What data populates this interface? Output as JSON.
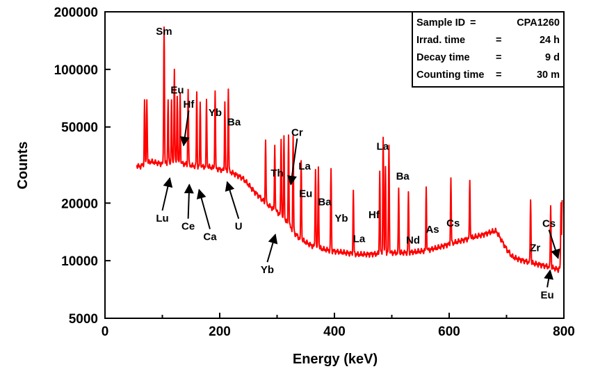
{
  "chart_data": {
    "type": "line",
    "title": "",
    "xlabel": "Energy (keV)",
    "ylabel": "Counts",
    "xlim": [
      0,
      800
    ],
    "ylim": [
      5000,
      200000
    ],
    "yscale": "log",
    "x_ticks": [
      "0",
      "200",
      "400",
      "600",
      "800"
    ],
    "y_ticks": [
      {
        "value": 5000,
        "label": "5000"
      },
      {
        "value": 10000,
        "label": "10000"
      },
      {
        "value": 20000,
        "label": "20000"
      },
      {
        "value": 50000,
        "label": "50000"
      },
      {
        "value": 100000,
        "label": "100000"
      },
      {
        "value": 200000,
        "label": "200000"
      }
    ],
    "line_color": "#ff0000",
    "grid": false,
    "info_box": {
      "placement": "top-right",
      "lines": [
        {
          "key": "Sample ID",
          "sep": "=",
          "value": "CPA1260"
        },
        {
          "key": "Irrad. time",
          "sep": "=",
          "value": "24 h"
        },
        {
          "key": "Decay time",
          "sep": "=",
          "value": "9 d"
        },
        {
          "key": "Counting time",
          "sep": "=",
          "value": "30 m"
        }
      ]
    },
    "continuum": [
      [
        55,
        31500
      ],
      [
        60,
        31000
      ],
      [
        70,
        32000
      ],
      [
        80,
        33000
      ],
      [
        90,
        32500
      ],
      [
        100,
        32000
      ],
      [
        110,
        32500
      ],
      [
        120,
        33000
      ],
      [
        130,
        32500
      ],
      [
        140,
        32000
      ],
      [
        150,
        31500
      ],
      [
        160,
        31000
      ],
      [
        170,
        31000
      ],
      [
        180,
        31000
      ],
      [
        190,
        30500
      ],
      [
        200,
        30000
      ],
      [
        210,
        29500
      ],
      [
        220,
        29000
      ],
      [
        230,
        28000
      ],
      [
        240,
        27000
      ],
      [
        250,
        25000
      ],
      [
        260,
        23000
      ],
      [
        270,
        21500
      ],
      [
        280,
        20000
      ],
      [
        290,
        19000
      ],
      [
        300,
        18000
      ],
      [
        310,
        17000
      ],
      [
        320,
        15500
      ],
      [
        330,
        14000
      ],
      [
        340,
        13000
      ],
      [
        350,
        12500
      ],
      [
        360,
        12000
      ],
      [
        380,
        11500
      ],
      [
        400,
        11200
      ],
      [
        420,
        11000
      ],
      [
        440,
        10800
      ],
      [
        460,
        10800
      ],
      [
        480,
        10900
      ],
      [
        500,
        11000
      ],
      [
        520,
        11000
      ],
      [
        540,
        11100
      ],
      [
        560,
        11300
      ],
      [
        580,
        11700
      ],
      [
        600,
        12200
      ],
      [
        620,
        12700
      ],
      [
        640,
        13200
      ],
      [
        660,
        13700
      ],
      [
        675,
        14200
      ],
      [
        682,
        14300
      ],
      [
        690,
        13000
      ],
      [
        700,
        11500
      ],
      [
        710,
        10500
      ],
      [
        720,
        10200
      ],
      [
        740,
        9800
      ],
      [
        760,
        9500
      ],
      [
        780,
        9200
      ],
      [
        790,
        9000
      ],
      [
        797,
        9300
      ]
    ],
    "peaks": [
      [
        69,
        37000
      ],
      [
        73,
        38000
      ],
      [
        103,
        135000
      ],
      [
        110,
        37000
      ],
      [
        116,
        37000
      ],
      [
        121,
        68000
      ],
      [
        126,
        40000
      ],
      [
        131,
        42000
      ],
      [
        145,
        47000
      ],
      [
        160,
        45000
      ],
      [
        166,
        36000
      ],
      [
        177,
        38000
      ],
      [
        192,
        47000
      ],
      [
        209,
        38000
      ],
      [
        215,
        50000
      ],
      [
        280,
        23000
      ],
      [
        296,
        22000
      ],
      [
        307,
        26000
      ],
      [
        312,
        28000
      ],
      [
        320,
        30000
      ],
      [
        328,
        30500
      ],
      [
        342,
        20500
      ],
      [
        367,
        18500
      ],
      [
        372,
        19500
      ],
      [
        394,
        19000
      ],
      [
        433,
        12300
      ],
      [
        479,
        18500
      ],
      [
        485,
        33500
      ],
      [
        489,
        20000
      ],
      [
        495,
        29000
      ],
      [
        512,
        13000
      ],
      [
        529,
        11800
      ],
      [
        560,
        13000
      ],
      [
        603,
        14700
      ],
      [
        636,
        13400
      ],
      [
        742,
        11200
      ],
      [
        777,
        10300
      ],
      [
        795,
        11000
      ],
      [
        797,
        11300
      ]
    ],
    "annotations": [
      {
        "label": "Sm",
        "x": 103,
        "y": 152000
      },
      {
        "label": "Eu",
        "x": 126,
        "y": 75000
      },
      {
        "label": "Hf",
        "x": 146,
        "y": 63000,
        "arrow_to": [
          137,
          40000
        ]
      },
      {
        "label": "Yb",
        "x": 192,
        "y": 57000
      },
      {
        "label": "Ba",
        "x": 225,
        "y": 51000
      },
      {
        "label": "Lu",
        "x": 100,
        "y": 16000,
        "arrow_to": [
          113,
          27000
        ]
      },
      {
        "label": "Ce",
        "x": 145,
        "y": 14500,
        "arrow_to": [
          147,
          25000
        ]
      },
      {
        "label": "Ca",
        "x": 183,
        "y": 12800,
        "arrow_to": [
          164,
          23500
        ]
      },
      {
        "label": "U",
        "x": 233,
        "y": 14500,
        "arrow_to": [
          213,
          25800
        ]
      },
      {
        "label": "Th",
        "x": 300,
        "y": 27500
      },
      {
        "label": "Cr",
        "x": 335,
        "y": 45000,
        "arrow_to": [
          324,
          25000
        ]
      },
      {
        "label": "La",
        "x": 348,
        "y": 30000
      },
      {
        "label": "Eu",
        "x": 350,
        "y": 21500
      },
      {
        "label": "Ba",
        "x": 383,
        "y": 19500
      },
      {
        "label": "Yb",
        "x": 412,
        "y": 16000
      },
      {
        "label": "Yb",
        "x": 283,
        "y": 8600,
        "arrow_to": [
          297,
          13700
        ]
      },
      {
        "label": "La",
        "x": 443,
        "y": 12500
      },
      {
        "label": "Hf",
        "x": 469,
        "y": 16700
      },
      {
        "label": "La",
        "x": 484,
        "y": 38000
      },
      {
        "label": "Ba",
        "x": 519,
        "y": 26500
      },
      {
        "label": "Nd",
        "x": 537,
        "y": 12300
      },
      {
        "label": "As",
        "x": 571,
        "y": 14000
      },
      {
        "label": "Cs",
        "x": 607,
        "y": 15100
      },
      {
        "label": "Zr",
        "x": 750,
        "y": 11200
      },
      {
        "label": "Cs",
        "x": 774,
        "y": 15000,
        "arrow_to": [
          790,
          10300
        ]
      },
      {
        "label": "Eu",
        "x": 771,
        "y": 6350,
        "arrow_to": [
          776,
          8900
        ]
      }
    ]
  }
}
